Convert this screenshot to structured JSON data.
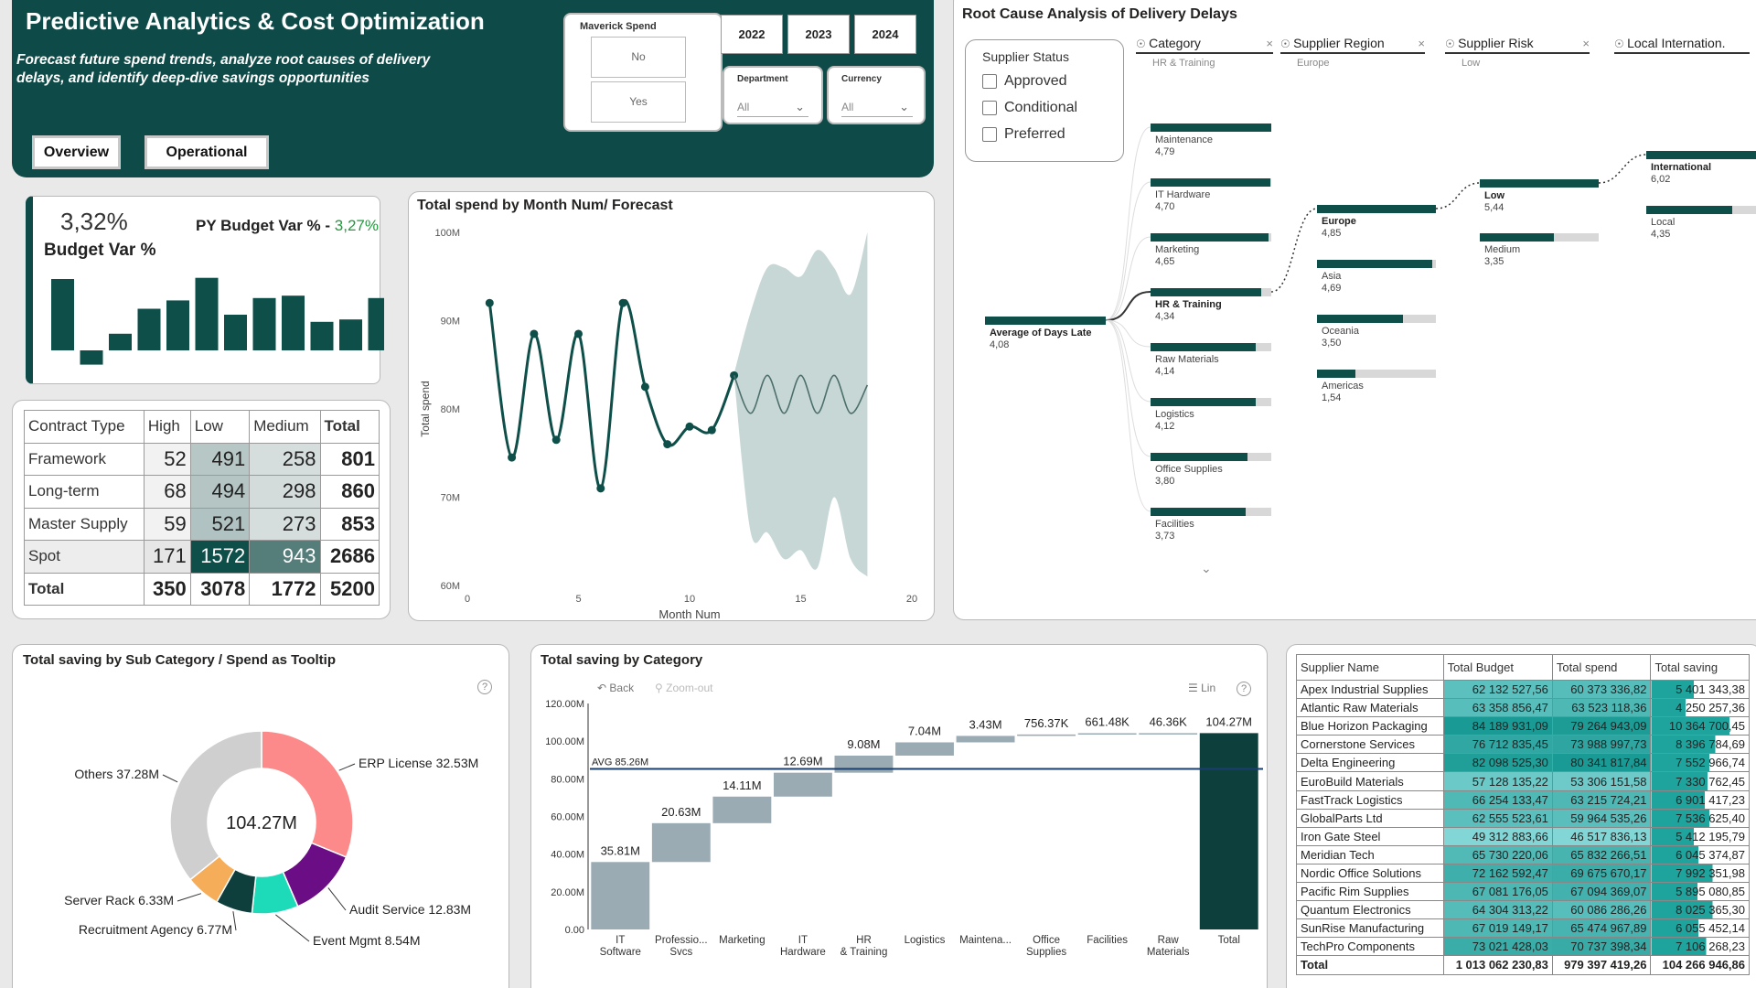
{
  "header": {
    "title": "Predictive Analytics & Cost Optimization",
    "subtitle": "Forecast future spend trends, analyze root causes of delivery delays, and identify deep-dive savings opportunities",
    "nav": [
      "Overview",
      "Operational"
    ],
    "maverick": {
      "label": "Maverick Spend",
      "options": [
        "No",
        "Yes"
      ]
    },
    "years": [
      "2022",
      "2023",
      "2024"
    ],
    "department": {
      "label": "Department",
      "value": "All"
    },
    "currency": {
      "label": "Currency",
      "value": "All"
    }
  },
  "kpi": {
    "value": "3,32%",
    "label": "Budget Var %",
    "py_label": "PY Budget Var % - ",
    "py_value": "3,27%",
    "bars": [
      6,
      -1.2,
      1.4,
      3.5,
      4.2,
      6.1,
      3.0,
      4.4,
      4.6,
      2.4,
      2.6,
      4.4
    ]
  },
  "matrix": {
    "headers": [
      "Contract Type",
      "High",
      "Low",
      "Medium",
      "Total"
    ],
    "rows": [
      [
        "Framework",
        "52",
        "491",
        "258",
        "801"
      ],
      [
        "Long-term",
        "68",
        "494",
        "298",
        "860"
      ],
      [
        "Master Supply",
        "59",
        "521",
        "273",
        "853"
      ],
      [
        "Spot",
        "171",
        "1572",
        "943",
        "2686"
      ],
      [
        "Total",
        "350",
        "3078",
        "1772",
        "5200"
      ]
    ],
    "shade": [
      [
        null,
        "#b7c7c6",
        "#d6dedd"
      ],
      [
        null,
        "#b4c5c4",
        "#d3dcdb"
      ],
      [
        null,
        "#b0c2c1",
        "#d6dedd"
      ],
      [
        null,
        "#0f4f4a",
        "#557e7b"
      ]
    ]
  },
  "line_chart": {
    "title": "Total spend by Month Num/ Forecast",
    "chart_data": {
      "type": "line",
      "xlabel": "Month Num",
      "ylabel": "Total spend",
      "xlim": [
        0,
        20
      ],
      "ylim": [
        60,
        100
      ],
      "x_ticks": [
        "0",
        "5",
        "10",
        "15",
        "20"
      ],
      "y_ticks": [
        "60M",
        "70M",
        "80M",
        "90M",
        "100M"
      ],
      "series": [
        {
          "name": "",
          "x": [
            1,
            2,
            3,
            4,
            5,
            6,
            7,
            8,
            9,
            10,
            11,
            12
          ],
          "values": [
            92,
            74.5,
            88.5,
            76.5,
            88.5,
            71,
            92,
            82.5,
            76,
            78,
            77.6,
            83.8
          ]
        }
      ],
      "forecast": {
        "x": [
          12,
          12.75,
          13.5,
          14.25,
          15,
          15.75,
          16.5,
          17.25,
          18
        ],
        "values": [
          83.8,
          79.5,
          83.8,
          79.5,
          83.8,
          79.5,
          83.8,
          79.5,
          82.7
        ],
        "upper": [
          84,
          91,
          96,
          96,
          95,
          98,
          96,
          93,
          100
        ],
        "lower": [
          83.6,
          66,
          66,
          63,
          64,
          62,
          70,
          63,
          61
        ]
      }
    }
  },
  "tree": {
    "title": "Root Cause Analysis of Delivery Delays",
    "supplier_status": {
      "title": "Supplier Status",
      "options": [
        "Approved",
        "Conditional",
        "Preferred"
      ]
    },
    "headers": [
      {
        "name": "Category",
        "sub": "HR & Training"
      },
      {
        "name": "Supplier Region",
        "sub": "Europe"
      },
      {
        "name": "Supplier Risk",
        "sub": "Low"
      },
      {
        "name": "Local Internation.",
        "sub": ""
      }
    ],
    "root": {
      "label": "Average of Days Late",
      "value": "4,08"
    },
    "categories": [
      {
        "label": "Maintenance",
        "value": "4,79",
        "frac": 1.0
      },
      {
        "label": "IT Hardware",
        "value": "4,70",
        "frac": 0.99
      },
      {
        "label": "Marketing",
        "value": "4,65",
        "frac": 0.98
      },
      {
        "label": "HR & Training",
        "value": "4,34",
        "frac": 0.92
      },
      {
        "label": "Raw Materials",
        "value": "4,14",
        "frac": 0.87
      },
      {
        "label": "Logistics",
        "value": "4,12",
        "frac": 0.87
      },
      {
        "label": "Office Supplies",
        "value": "3,80",
        "frac": 0.8
      },
      {
        "label": "Facilities",
        "value": "3,73",
        "frac": 0.79
      }
    ],
    "regions": [
      {
        "label": "Europe",
        "value": "4,85",
        "frac": 1.0
      },
      {
        "label": "Asia",
        "value": "4,69",
        "frac": 0.97
      },
      {
        "label": "Oceania",
        "value": "3,50",
        "frac": 0.72
      },
      {
        "label": "Americas",
        "value": "1,54",
        "frac": 0.32
      }
    ],
    "risks": [
      {
        "label": "Low",
        "value": "5,44",
        "frac": 1.0
      },
      {
        "label": "Medium",
        "value": "3,35",
        "frac": 0.62
      }
    ],
    "locality": [
      {
        "label": "International",
        "value": "6,02",
        "frac": 1.0
      },
      {
        "label": "Local",
        "value": "4,35",
        "frac": 0.72
      }
    ]
  },
  "donut": {
    "title": "Total saving by Sub Category / Spend as Tooltip",
    "center": "104.27M",
    "chart_data": {
      "type": "pie",
      "labels": [
        "ERP License",
        "Audit Service",
        "Event Mgmt",
        "Recruitment Agency",
        "Server Rack",
        "Others"
      ],
      "values": [
        32.53,
        12.83,
        8.54,
        6.77,
        6.33,
        37.28
      ],
      "display": [
        "ERP License 32.53M",
        "Audit Service 12.83M",
        "Event Mgmt 8.54M",
        "Recruitment Agency 6.77M",
        "Server Rack 6.33M",
        "Others 37.28M"
      ],
      "colors": [
        "#fd8a8a",
        "#6b0d84",
        "#1ddbb9",
        "#0f3f3c",
        "#f5ad5a",
        "#cfcfcf"
      ]
    }
  },
  "waterfall": {
    "title": "Total saving by Category",
    "toolbar": {
      "back": "Back",
      "zoom": "Zoom-out",
      "lin": "Lin"
    },
    "avg_label": "AVG 85.26M",
    "chart_data": {
      "type": "bar",
      "categories": [
        "IT Software",
        "Professio... Svcs",
        "Marketing",
        "IT Hardware",
        "HR & Training",
        "Logistics",
        "Maintena...",
        "Office Supplies",
        "Facilities",
        "Raw Materials",
        "Total"
      ],
      "values": [
        35.81,
        20.63,
        14.11,
        12.69,
        9.08,
        7.04,
        3.43,
        0.75637,
        0.66148,
        0.04636,
        104.27
      ],
      "labels": [
        "35.81M",
        "20.63M",
        "14.11M",
        "12.69M",
        "9.08M",
        "7.04M",
        "3.43M",
        "756.37K",
        "661.48K",
        "46.36K",
        "104.27M"
      ],
      "ylim": [
        0,
        120
      ],
      "y_ticks": [
        "0.00",
        "20.00M",
        "40.00M",
        "60.00M",
        "80.00M",
        "100.00M",
        "120.00M"
      ],
      "avg": 85.26
    }
  },
  "suppliers": {
    "headers": [
      "Supplier Name",
      "Total Budget",
      "Total spend",
      "Total saving"
    ],
    "rows": [
      [
        "Apex Industrial Supplies",
        "62 132 527,56",
        "60 373 336,82",
        "5 401 343,38"
      ],
      [
        "Atlantic Raw Materials",
        "63 358 856,47",
        "63 523 118,36",
        "4 250 257,36"
      ],
      [
        "Blue Horizon Packaging",
        "84 189 931,09",
        "79 264 943,09",
        "10 364 700,45"
      ],
      [
        "Cornerstone Services",
        "76 712 835,45",
        "73 988 997,73",
        "8 396 784,69"
      ],
      [
        "Delta Engineering",
        "82 098 525,30",
        "80 341 817,84",
        "7 552 966,74"
      ],
      [
        "EuroBuild Materials",
        "57 128 135,22",
        "53 306 151,58",
        "7 330 762,45"
      ],
      [
        "FastTrack Logistics",
        "66 254 133,47",
        "63 215 724,21",
        "6 901 417,23"
      ],
      [
        "GlobalParts Ltd",
        "62 555 523,61",
        "59 964 535,26",
        "7 536 625,40"
      ],
      [
        "Iron Gate Steel",
        "49 312 883,66",
        "46 517 836,13",
        "5 412 195,79"
      ],
      [
        "Meridian Tech",
        "65 730 220,06",
        "65 832 266,51",
        "6 045 374,87"
      ],
      [
        "Nordic Office Solutions",
        "72 162 592,47",
        "69 675 670,17",
        "7 992 351,98"
      ],
      [
        "Pacific Rim Supplies",
        "67 081 176,05",
        "67 094 369,07",
        "5 895 080,85"
      ],
      [
        "Quantum Electronics",
        "64 304 313,22",
        "60 086 286,26",
        "8 025 365,30"
      ],
      [
        "SunRise Manufacturing",
        "67 019 149,17",
        "65 474 967,89",
        "6 055 452,14"
      ],
      [
        "TechPro Components",
        "73 021 428,03",
        "70 737 398,34",
        "7 106 268,23"
      ]
    ],
    "total": [
      "Total",
      "1 013 062 230,83",
      "979 397 419,26",
      "104 266 946,86"
    ]
  }
}
